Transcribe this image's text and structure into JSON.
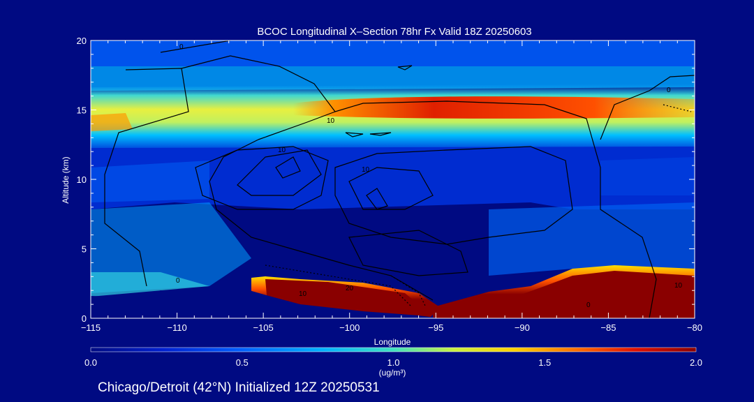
{
  "chart_data": {
    "type": "heatmap",
    "title": "BCOC Longitudinal X–Section 78hr  Fx Valid 18Z 20250603",
    "xlabel": "Longitude",
    "ylabel": "Altitude (km)",
    "xlim": [
      -115,
      -80
    ],
    "ylim": [
      0,
      20
    ],
    "x_ticks": [
      "−115",
      "−110",
      "−105",
      "−100",
      "−95",
      "−90",
      "−85",
      "−80"
    ],
    "y_ticks": [
      "0",
      "5",
      "10",
      "15",
      "20"
    ],
    "colorbar": {
      "label": "(ug/m³)",
      "ticks": [
        "0.0",
        "0.5",
        "1.0",
        "1.5",
        "2.0"
      ],
      "range": [
        0.0,
        2.0
      ]
    },
    "contour_labels": [
      "0",
      "10",
      "20"
    ],
    "bands": [
      {
        "name": "upper-layer",
        "alt_range": [
          13.5,
          16.5
        ],
        "value": 0.9
      },
      {
        "name": "peak-layer",
        "lon_range": [
          -97,
          -88
        ],
        "alt_range": [
          14.4,
          15.8
        ],
        "value": 1.6
      },
      {
        "name": "surface-west",
        "lon_range": [
          -105,
          -95
        ],
        "alt_range": [
          0,
          3
        ],
        "value": 2.0
      },
      {
        "name": "surface-east",
        "lon_range": [
          -90,
          -80
        ],
        "alt_range": [
          0,
          3.5
        ],
        "value": 2.0
      }
    ]
  },
  "footer": "Chicago/Detroit (42°N) Initialized 12Z 20250531"
}
